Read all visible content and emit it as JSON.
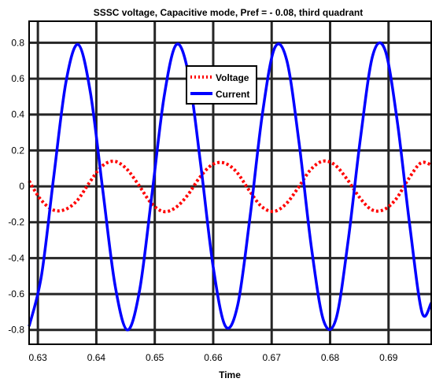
{
  "chart_data": {
    "type": "line",
    "title": "SSSC voltage, Capacitive mode, Pref = - 0.08, third quadrant",
    "xlabel": "Time",
    "ylabel": "",
    "xlim": [
      0.6285,
      0.6973
    ],
    "ylim": [
      -0.88,
      0.92
    ],
    "xticks": [
      0.63,
      0.64,
      0.65,
      0.66,
      0.67,
      0.68,
      0.69
    ],
    "xtick_labels": [
      "0.63",
      "0.64",
      "0.65",
      "0.66",
      "0.67",
      "0.68",
      "0.69"
    ],
    "yticks": [
      -0.8,
      -0.6,
      -0.4,
      -0.2,
      0,
      0.2,
      0.4,
      0.6,
      0.8
    ],
    "ytick_labels": [
      "-0.8",
      "-0.6",
      "-0.4",
      "-0.2",
      "0",
      "0.2",
      "0.4",
      "0.6",
      "0.8"
    ],
    "grid": true,
    "legend_position": "top-center",
    "series": [
      {
        "name": "Voltage",
        "color": "#ff0000",
        "style": "dotted",
        "x": [
          0.6285,
          0.6304,
          0.6325,
          0.6346,
          0.6367,
          0.6388,
          0.6409,
          0.643,
          0.6451,
          0.6472,
          0.6493,
          0.6514,
          0.6535,
          0.6556,
          0.6577,
          0.6598,
          0.6619,
          0.664,
          0.6661,
          0.6682,
          0.6703,
          0.6724,
          0.6745,
          0.6766,
          0.6787,
          0.6808,
          0.6829,
          0.685,
          0.6871,
          0.6892,
          0.6913,
          0.6934,
          0.6955,
          0.6973
        ],
        "y": [
          0.03,
          -0.07,
          -0.13,
          -0.13,
          -0.08,
          0.02,
          0.11,
          0.14,
          0.1,
          0.01,
          -0.09,
          -0.14,
          -0.12,
          -0.05,
          0.05,
          0.12,
          0.13,
          0.08,
          -0.02,
          -0.11,
          -0.14,
          -0.1,
          -0.01,
          0.09,
          0.14,
          0.12,
          0.04,
          -0.06,
          -0.13,
          -0.13,
          -0.07,
          0.04,
          0.13,
          0.12
        ]
      },
      {
        "name": "Current",
        "color": "#0000ff",
        "style": "solid",
        "x": [
          0.6285,
          0.6306,
          0.6327,
          0.6348,
          0.6369,
          0.639,
          0.6411,
          0.6432,
          0.6453,
          0.6474,
          0.6495,
          0.6516,
          0.6537,
          0.6558,
          0.6579,
          0.66,
          0.6621,
          0.6642,
          0.6663,
          0.6684,
          0.6705,
          0.6726,
          0.6747,
          0.6768,
          0.6789,
          0.681,
          0.6831,
          0.6852,
          0.6873,
          0.6894,
          0.6915,
          0.6936,
          0.6957,
          0.6973
        ],
        "y": [
          -0.78,
          -0.5,
          0.05,
          0.58,
          0.79,
          0.52,
          -0.02,
          -0.55,
          -0.8,
          -0.58,
          -0.05,
          0.5,
          0.79,
          0.62,
          0.11,
          -0.45,
          -0.78,
          -0.66,
          -0.17,
          0.4,
          0.77,
          0.7,
          0.24,
          -0.34,
          -0.75,
          -0.74,
          -0.3,
          0.27,
          0.73,
          0.76,
          0.36,
          -0.21,
          -0.7,
          -0.65
        ]
      }
    ]
  }
}
